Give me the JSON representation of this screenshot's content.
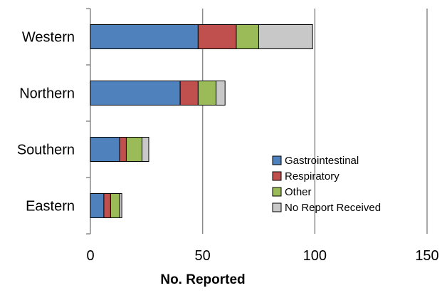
{
  "chart_data": {
    "type": "bar",
    "orientation": "horizontal",
    "stacked": true,
    "categories": [
      "Western",
      "Northern",
      "Southern",
      "Eastern"
    ],
    "series": [
      {
        "name": "Gastrointestinal",
        "color": "#4f81bd",
        "values": [
          48,
          40,
          13,
          6
        ]
      },
      {
        "name": "Respiratory",
        "color": "#c0504d",
        "values": [
          17,
          8,
          3,
          3
        ]
      },
      {
        "name": "Other",
        "color": "#9bbb59",
        "values": [
          10,
          8,
          7,
          4
        ]
      },
      {
        "name": "No Report Received",
        "color": "#c8c8c8",
        "values": [
          24,
          4,
          3,
          1
        ]
      }
    ],
    "xlabel": "No. Reported",
    "ylabel": "",
    "xlim": [
      0,
      150
    ],
    "xticks": [
      "0",
      "50",
      "100",
      "150"
    ],
    "grid": "vertical",
    "legend": "lower-right"
  }
}
